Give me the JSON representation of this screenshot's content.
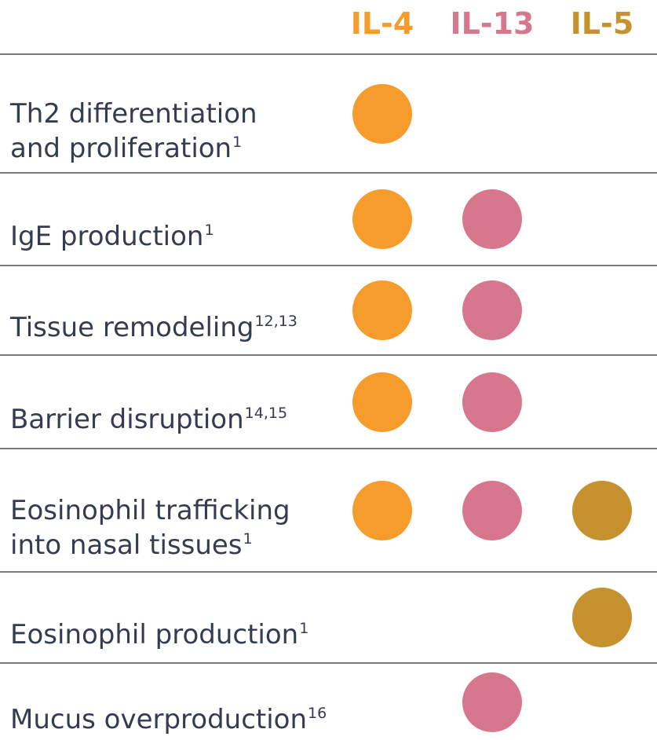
{
  "colors": {
    "il4": "#F69C2D",
    "il13": "#D7778D",
    "il5": "#C5922F",
    "text": "#363C50",
    "divider": "#7A7B7E",
    "background": "#FFFFFF"
  },
  "header": {
    "columns": [
      {
        "id": "il4",
        "label": "IL-4"
      },
      {
        "id": "il13",
        "label": "IL-13"
      },
      {
        "id": "il5",
        "label": "IL-5"
      }
    ]
  },
  "table": {
    "rows": [
      {
        "label": "Th2 differentiation\nand proliferation",
        "reference": "1",
        "dots": {
          "il4": true,
          "il13": false,
          "il5": false
        }
      },
      {
        "label": "IgE production",
        "reference": "1",
        "dots": {
          "il4": true,
          "il13": true,
          "il5": false
        }
      },
      {
        "label": "Tissue remodeling",
        "reference": "12,13",
        "dots": {
          "il4": true,
          "il13": true,
          "il5": false
        }
      },
      {
        "label": "Barrier disruption",
        "reference": "14,15",
        "dots": {
          "il4": true,
          "il13": true,
          "il5": false
        }
      },
      {
        "label": "Eosinophil trafficking\ninto nasal tissues",
        "reference": "1",
        "dots": {
          "il4": true,
          "il13": true,
          "il5": true
        }
      },
      {
        "label": "Eosinophil production",
        "reference": "1",
        "dots": {
          "il4": false,
          "il13": false,
          "il5": true
        }
      },
      {
        "label": "Mucus overproduction",
        "reference": "16",
        "dots": {
          "il4": false,
          "il13": true,
          "il5": false
        }
      }
    ]
  }
}
